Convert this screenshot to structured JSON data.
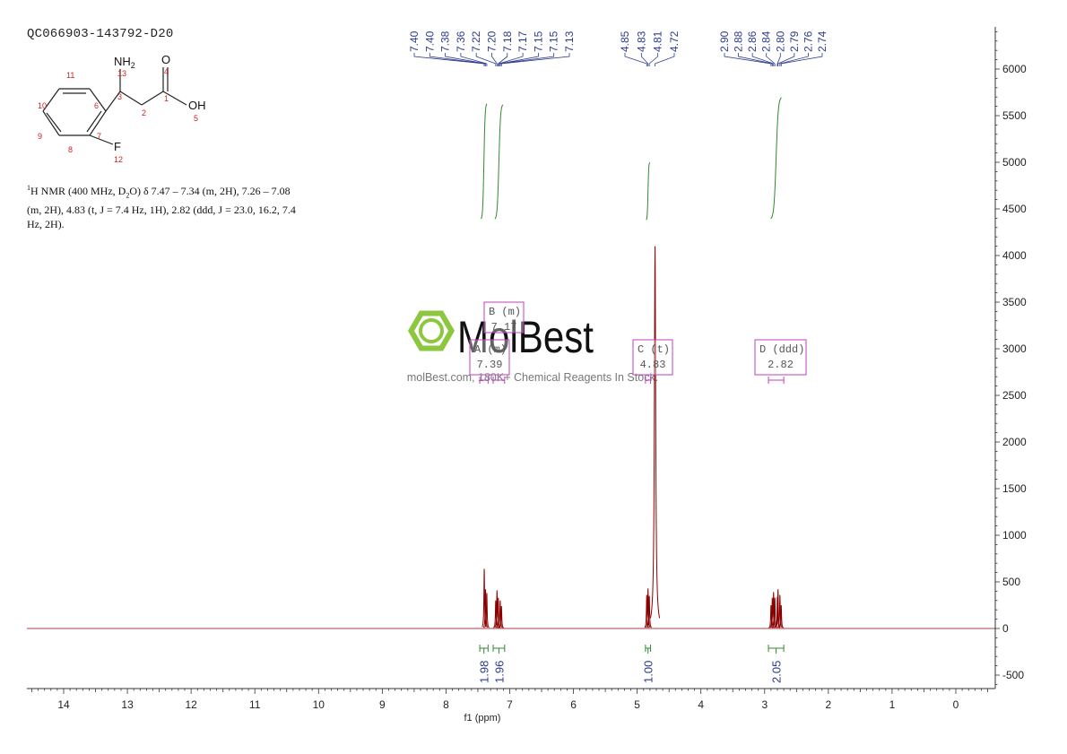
{
  "sample_id": "QC066903-143792-D20",
  "nmr_text": {
    "nucleus_sup": "1",
    "main": "H NMR (400 MHz, D",
    "sub": "2",
    "rest": "O) δ 7.47 – 7.34 (m, 2H), 7.26 – 7.08 (m, 2H), 4.83 (t, J = 7.4 Hz, 1H), 2.82 (ddd, J = 23.0, 16.2, 7.4 Hz, 2H)."
  },
  "structure": {
    "amine_label": "NH",
    "amine_sub": "2",
    "carbonyl_o": "O",
    "hydroxyl": "OH",
    "fluorine": "F",
    "atom_numbers": [
      "13",
      "4",
      "11",
      "3",
      "1",
      "10",
      "6",
      "2",
      "5",
      "9",
      "7",
      "8",
      "12"
    ]
  },
  "watermark": {
    "brand": "MolBest",
    "tagline": "molBest.com, 180K+ Chemical Reagents In Stock."
  },
  "colors": {
    "spectrum": "#8b0000",
    "integral": "#2e8b2e",
    "peak_label": "#2b3a8c",
    "multiplet_box": "#c040c0",
    "axis": "#333333",
    "atom_number": "#cc2222",
    "watermark_green": "#8dc63f"
  },
  "chart_data": {
    "type": "line",
    "xlabel": "f1 (ppm)",
    "x_reversed": true,
    "xlim": [
      14.5,
      -0.6
    ],
    "ylim": [
      -650,
      6500
    ],
    "x_ticks": [
      14,
      13,
      12,
      11,
      10,
      9,
      8,
      7,
      6,
      5,
      4,
      3,
      2,
      1,
      0
    ],
    "y_ticks": [
      -500,
      0,
      500,
      1000,
      1500,
      2000,
      2500,
      3000,
      3500,
      4000,
      4500,
      5000,
      5500,
      6000
    ],
    "peak_labels": [
      "7.40",
      "7.40",
      "7.38",
      "7.36",
      "7.22",
      "7.20",
      "7.18",
      "7.17",
      "7.15",
      "7.15",
      "7.13",
      "4.85",
      "4.83",
      "4.81",
      "4.72",
      "2.90",
      "2.88",
      "2.86",
      "2.84",
      "2.80",
      "2.79",
      "2.76",
      "2.74"
    ],
    "peaks": [
      {
        "ppm": 4.72,
        "height": 4100
      },
      {
        "ppm": 7.4,
        "height": 640
      },
      {
        "ppm": 7.38,
        "height": 420
      },
      {
        "ppm": 7.36,
        "height": 380
      },
      {
        "ppm": 7.22,
        "height": 300
      },
      {
        "ppm": 7.2,
        "height": 410
      },
      {
        "ppm": 7.18,
        "height": 330
      },
      {
        "ppm": 7.15,
        "height": 300
      },
      {
        "ppm": 7.13,
        "height": 240
      },
      {
        "ppm": 4.85,
        "height": 360
      },
      {
        "ppm": 4.83,
        "height": 430
      },
      {
        "ppm": 4.81,
        "height": 350
      },
      {
        "ppm": 2.9,
        "height": 250
      },
      {
        "ppm": 2.88,
        "height": 330
      },
      {
        "ppm": 2.86,
        "height": 390
      },
      {
        "ppm": 2.84,
        "height": 330
      },
      {
        "ppm": 2.8,
        "height": 340
      },
      {
        "ppm": 2.79,
        "height": 420
      },
      {
        "ppm": 2.76,
        "height": 360
      },
      {
        "ppm": 2.74,
        "height": 250
      }
    ],
    "multiplets": [
      {
        "label": "A (m)",
        "shift": "7.39",
        "range": [
          7.47,
          7.34
        ]
      },
      {
        "label": "B (m)",
        "shift": "7.17",
        "range": [
          7.26,
          7.08
        ]
      },
      {
        "label": "C (t)",
        "shift": "4.83",
        "range": [
          4.87,
          4.79
        ]
      },
      {
        "label": "D (ddd)",
        "shift": "2.82",
        "range": [
          2.94,
          2.7
        ]
      }
    ],
    "integrals": [
      {
        "value": "1.98",
        "range": [
          7.47,
          7.34
        ],
        "curve_start": 4330,
        "curve_end": 5690
      },
      {
        "value": "1.96",
        "range": [
          7.26,
          7.08
        ],
        "curve_start": 4330,
        "curve_end": 5680
      },
      {
        "value": "1.00",
        "range": [
          4.87,
          4.79
        ],
        "curve_start": 4350,
        "curve_end": 5030
      },
      {
        "value": "2.05",
        "range": [
          2.94,
          2.7
        ],
        "curve_start": 4330,
        "curve_end": 5760
      }
    ]
  }
}
